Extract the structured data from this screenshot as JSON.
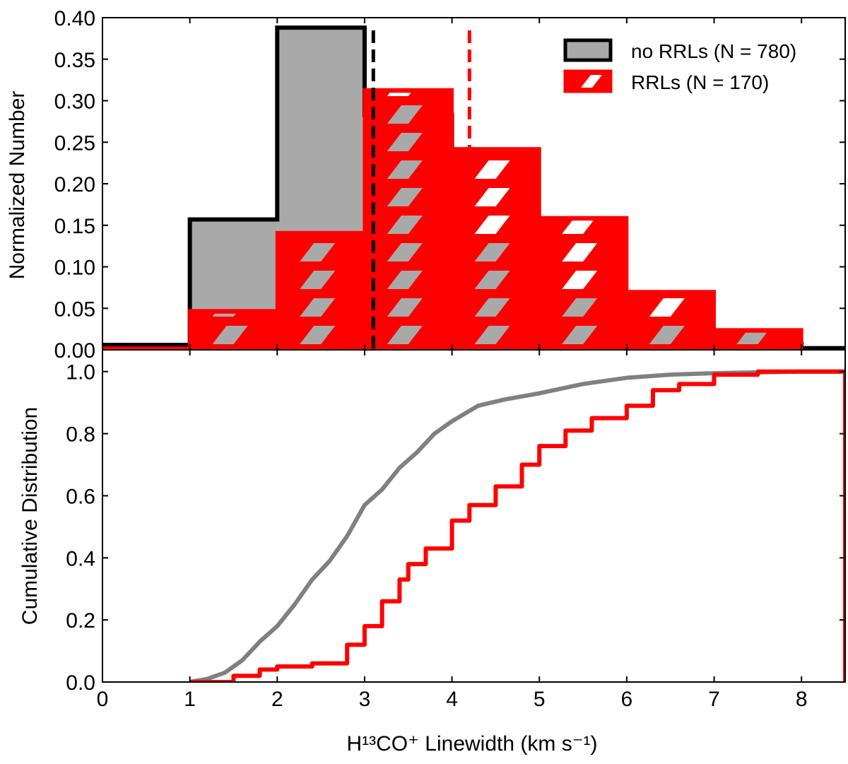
{
  "chart_data": [
    {
      "type": "histogram",
      "panel": "top",
      "ylabel": "Normalized Number",
      "xlim": [
        0,
        8.5
      ],
      "ylim": [
        0,
        0.4
      ],
      "yticks": [
        "0.00",
        "0.05",
        "0.10",
        "0.15",
        "0.20",
        "0.25",
        "0.30",
        "0.35",
        "0.40"
      ],
      "yticks_values": [
        0,
        0.05,
        0.1,
        0.15,
        0.2,
        0.25,
        0.3,
        0.35,
        0.4
      ],
      "legend": {
        "position": "top-right",
        "entries": [
          "no RRLs (N = 780)",
          "RRLs (N = 170)"
        ]
      },
      "series": [
        {
          "name": "no RRLs (N = 780)",
          "bins": [
            [
              0,
              1
            ],
            [
              1,
              2
            ],
            [
              2,
              3
            ],
            [
              3,
              4
            ],
            [
              4,
              5
            ],
            [
              5,
              6
            ],
            [
              6,
              7
            ],
            [
              7,
              8
            ],
            [
              8,
              8.5
            ]
          ],
          "values": [
            0.006,
            0.157,
            0.388,
            0.283,
            0.108,
            0.041,
            0.01,
            0.007,
            0.002
          ],
          "median": 3.1,
          "color": "#000000",
          "fill": "#a9a9a9"
        },
        {
          "name": "RRLs (N = 170)",
          "bins": [
            [
              0,
              1
            ],
            [
              1,
              2
            ],
            [
              2,
              3
            ],
            [
              3,
              4
            ],
            [
              4,
              5
            ],
            [
              5,
              6
            ],
            [
              6,
              7
            ],
            [
              7,
              8
            ],
            [
              8,
              8.5
            ]
          ],
          "values": [
            0.002,
            0.047,
            0.141,
            0.313,
            0.242,
            0.159,
            0.07,
            0.024,
            0.0
          ],
          "median": 4.2,
          "color": "#ff0000",
          "hatch": "diagonal"
        }
      ]
    },
    {
      "type": "line",
      "panel": "bottom",
      "ylabel": "Cumulative Distribution",
      "xlabel": "H¹³CO⁺  Linewidth (km s⁻¹)",
      "xlim": [
        0,
        8.5
      ],
      "ylim": [
        0,
        1.07
      ],
      "xticks": [
        "0",
        "1",
        "2",
        "3",
        "4",
        "5",
        "6",
        "7",
        "8"
      ],
      "xticks_values": [
        0,
        1,
        2,
        3,
        4,
        5,
        6,
        7,
        8
      ],
      "yticks": [
        "0.0",
        "0.2",
        "0.4",
        "0.6",
        "0.8",
        "1.0"
      ],
      "yticks_values": [
        0,
        0.2,
        0.4,
        0.6,
        0.8,
        1.0
      ],
      "series": [
        {
          "name": "no RRLs",
          "color": "#808080",
          "x": [
            1.0,
            1.2,
            1.4,
            1.6,
            1.8,
            2.0,
            2.2,
            2.4,
            2.6,
            2.8,
            3.0,
            3.2,
            3.4,
            3.6,
            3.8,
            4.0,
            4.3,
            4.6,
            5.0,
            5.5,
            6.0,
            6.5,
            7.0,
            8.0,
            8.5
          ],
          "y": [
            0.0,
            0.01,
            0.03,
            0.07,
            0.13,
            0.18,
            0.25,
            0.33,
            0.39,
            0.47,
            0.57,
            0.62,
            0.69,
            0.74,
            0.8,
            0.84,
            0.89,
            0.91,
            0.93,
            0.96,
            0.98,
            0.99,
            0.995,
            1.0,
            1.0
          ]
        },
        {
          "name": "RRLs",
          "color": "#ff0000",
          "x": [
            1.0,
            1.2,
            1.5,
            1.8,
            2.0,
            2.4,
            2.8,
            3.0,
            3.2,
            3.4,
            3.5,
            3.7,
            4.0,
            4.2,
            4.5,
            4.8,
            5.0,
            5.3,
            5.6,
            6.0,
            6.3,
            6.6,
            7.0,
            7.5,
            8.0,
            8.5
          ],
          "y": [
            0.0,
            0.0,
            0.02,
            0.04,
            0.05,
            0.06,
            0.12,
            0.18,
            0.26,
            0.33,
            0.38,
            0.43,
            0.52,
            0.57,
            0.63,
            0.7,
            0.76,
            0.81,
            0.85,
            0.89,
            0.94,
            0.96,
            0.99,
            1.0,
            1.0,
            1.0
          ]
        }
      ]
    }
  ]
}
